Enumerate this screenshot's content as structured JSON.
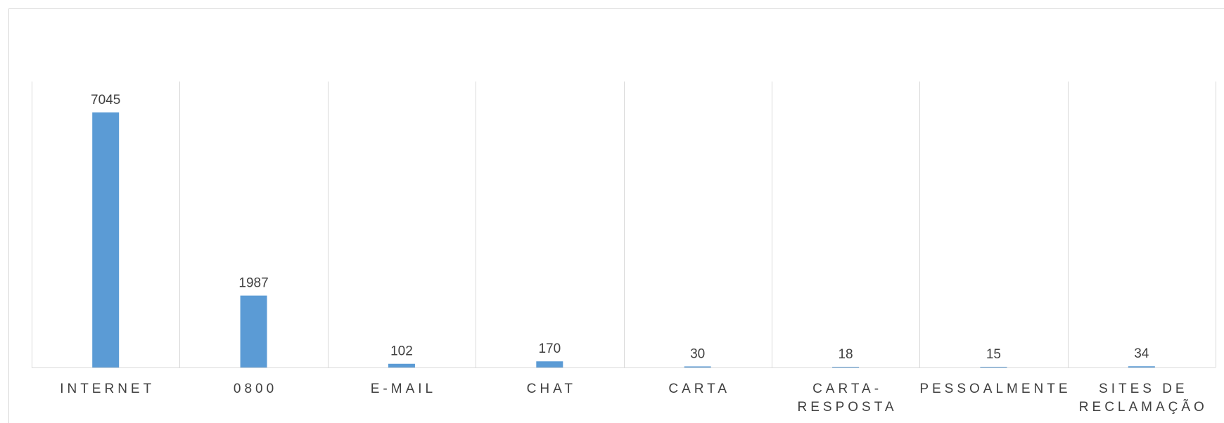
{
  "chart_data": {
    "type": "bar",
    "categories": [
      [
        "INTERNET"
      ],
      [
        "0800"
      ],
      [
        "E-MAIL"
      ],
      [
        "CHAT"
      ],
      [
        "CARTA"
      ],
      [
        "CARTA-",
        "RESPOSTA"
      ],
      [
        "PESSOALMENTE"
      ],
      [
        "SITES DE",
        "RECLAMAÇÃO"
      ]
    ],
    "values": [
      7045,
      1987,
      102,
      170,
      30,
      18,
      15,
      34
    ],
    "data_labels": [
      "7045",
      "1987",
      "102",
      "170",
      "30",
      "18",
      "15",
      "34"
    ],
    "ylim": [
      0,
      7900
    ],
    "grid": "vertical",
    "legend": "none",
    "bar_color": "#5b9bd5",
    "grid_color": "#d9d9d9"
  }
}
